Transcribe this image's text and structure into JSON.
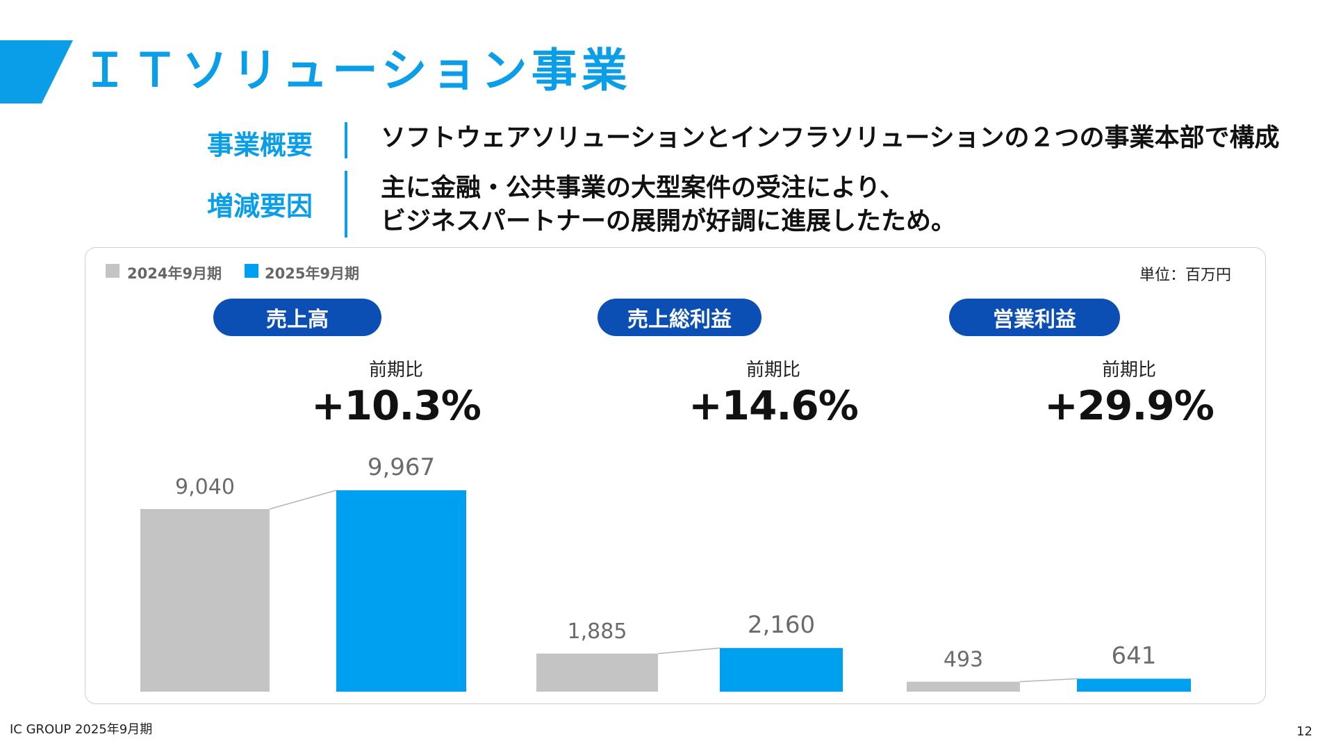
{
  "header": {
    "title": "ＩＴソリューション事業",
    "band_color": "#0a9ee8"
  },
  "info": [
    {
      "label": "事業概要",
      "lines": [
        "ソフトウェアソリューションとインフラソリューションの２つの事業本部で構成"
      ]
    },
    {
      "label": "増減要因",
      "lines": [
        "主に金融・公共事業の大型案件の受注により、",
        "ビジネスパートナーの展開が好調に進展したため。"
      ]
    }
  ],
  "legend": [
    {
      "label": "2024年9月期",
      "color": "#c4c4c4"
    },
    {
      "label": "2025年9月期",
      "color": "#00a0f0"
    }
  ],
  "unit_label": "単位：百万円",
  "comparisons": [
    {
      "pill": "売上高",
      "label": "前期比",
      "value": "+10.3%"
    },
    {
      "pill": "売上総利益",
      "label": "前期比",
      "value": "+14.6%"
    },
    {
      "pill": "営業利益",
      "label": "前期比",
      "value": "+29.9%"
    }
  ],
  "chart_data": {
    "type": "bar",
    "categories": [
      "売上高",
      "売上総利益",
      "営業利益"
    ],
    "series": [
      {
        "name": "2024年9月期",
        "values": [
          9040,
          1885,
          493
        ],
        "labels": [
          "9,040",
          "1,885",
          "493"
        ],
        "color": "#c4c4c4"
      },
      {
        "name": "2025年9月期",
        "values": [
          9967,
          2160,
          641
        ],
        "labels": [
          "9,967",
          "2,160",
          "641"
        ],
        "color": "#00a0f0"
      }
    ],
    "unit": "単位：百万円",
    "grid": false
  },
  "footer": {
    "left": "IC GROUP 2025年9月期",
    "page_number": "12"
  }
}
